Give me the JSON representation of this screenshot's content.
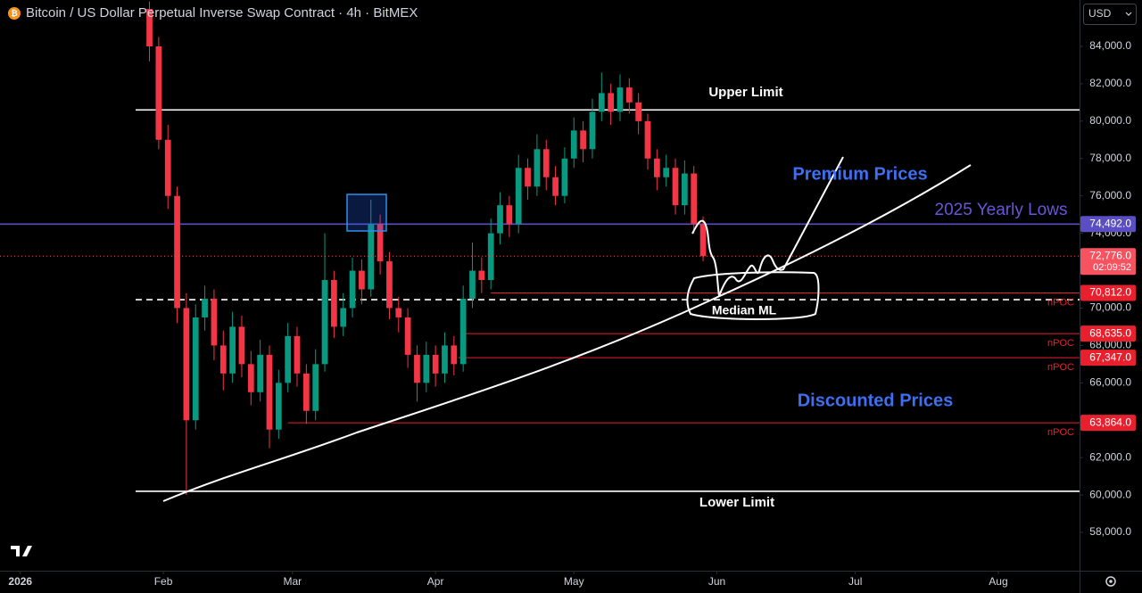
{
  "chart_data": {
    "type": "candlestick",
    "title": "Bitcoin / US Dollar Perpetual Inverse Swap Contract · 4h · BitMEX",
    "currency": "USD",
    "up_color": "#089981",
    "down_color": "#f23645",
    "xlim": [
      -4.4,
      229.6
    ],
    "xticks": [
      {
        "value": 0,
        "label": "2026"
      },
      {
        "value": 31,
        "label": "Feb"
      },
      {
        "value": 59,
        "label": "Mar"
      },
      {
        "value": 90,
        "label": "Apr"
      },
      {
        "value": 120,
        "label": "May"
      },
      {
        "value": 151,
        "label": "Jun"
      },
      {
        "value": 181,
        "label": "Jul"
      },
      {
        "value": 212,
        "label": "Aug"
      }
    ],
    "ylim": [
      55950,
      86480
    ],
    "yticks": [
      {
        "value": 58000,
        "label": "58,000.0"
      },
      {
        "value": 60000,
        "label": "60,000.0"
      },
      {
        "value": 62000,
        "label": "62,000.0"
      },
      {
        "value": 64000,
        "label": "64,000.0"
      },
      {
        "value": 66000,
        "label": "66,000.0"
      },
      {
        "value": 68000,
        "label": "68,000.0"
      },
      {
        "value": 70000,
        "label": "70,000.0"
      },
      {
        "value": 72000,
        "label": "72,000.0"
      },
      {
        "value": 74000,
        "label": "74,000.0"
      },
      {
        "value": 76000,
        "label": "76,000.0"
      },
      {
        "value": 78000,
        "label": "78,000.0"
      },
      {
        "value": 80000,
        "label": "80,000.0"
      },
      {
        "value": 82000,
        "label": "82,000.0"
      },
      {
        "value": 84000,
        "label": "84,000.0"
      }
    ],
    "x": [
      28,
      30,
      32,
      34,
      36,
      38,
      40,
      42,
      44,
      46,
      48,
      50,
      52,
      54,
      56,
      58,
      60,
      62,
      64,
      66,
      68,
      70,
      72,
      74,
      76,
      78,
      80,
      82,
      84,
      86,
      88,
      90,
      92,
      94,
      96,
      98,
      100,
      102,
      104,
      106,
      108,
      110,
      112,
      114,
      116,
      118,
      120,
      122,
      124,
      126,
      128,
      130,
      132,
      134,
      136,
      138,
      140,
      142,
      144,
      146,
      148
    ],
    "open": [
      86000,
      84000,
      79000,
      76000,
      70000,
      64000,
      69500,
      70500,
      68000,
      66500,
      69000,
      67000,
      65500,
      67500,
      63500,
      66000,
      68500,
      66500,
      64500,
      67000,
      71500,
      69000,
      70000,
      72000,
      71000,
      74500,
      72500,
      70000,
      69500,
      67500,
      66000,
      67500,
      66500,
      68000,
      67000,
      70500,
      72000,
      71500,
      74000,
      75500,
      74500,
      77500,
      76500,
      78500,
      77000,
      76000,
      78000,
      79500,
      78500,
      80500,
      81500,
      80500,
      81800,
      81000,
      80000,
      78000,
      77000,
      77500,
      75500,
      77200,
      74500
    ],
    "high": [
      86400,
      84500,
      79800,
      76500,
      70800,
      70200,
      71200,
      71000,
      68800,
      69800,
      69600,
      67700,
      68300,
      68000,
      66700,
      69200,
      69000,
      67000,
      67800,
      74000,
      72000,
      70800,
      72700,
      72600,
      75800,
      75000,
      73000,
      70600,
      70000,
      68000,
      68200,
      68000,
      68700,
      68500,
      71200,
      73500,
      72700,
      74800,
      76200,
      76000,
      78200,
      78000,
      79300,
      79000,
      77600,
      78600,
      80200,
      80000,
      81200,
      82600,
      82000,
      82500,
      82300,
      81500,
      80400,
      78500,
      78200,
      78000,
      77900,
      77600,
      74900
    ],
    "low": [
      83200,
      78500,
      75300,
      69200,
      60000,
      63500,
      68800,
      67200,
      65600,
      66000,
      66300,
      64800,
      65000,
      62500,
      63000,
      65500,
      65800,
      63800,
      64000,
      66600,
      68400,
      68500,
      69500,
      70200,
      70600,
      71800,
      69400,
      68700,
      66800,
      65000,
      65500,
      65800,
      66000,
      66400,
      66600,
      70000,
      70800,
      71000,
      73400,
      73800,
      74000,
      75800,
      76000,
      76300,
      75500,
      75600,
      77500,
      77800,
      78000,
      80000,
      79800,
      80000,
      80400,
      79300,
      77400,
      76300,
      76500,
      75000,
      75000,
      74000,
      72500
    ],
    "close": [
      84000,
      79000,
      76000,
      70000,
      64000,
      69500,
      70500,
      68000,
      66500,
      69000,
      67000,
      65500,
      67500,
      63500,
      66000,
      68500,
      66500,
      64500,
      67000,
      71500,
      69000,
      70000,
      72000,
      71000,
      74500,
      72500,
      70000,
      69500,
      67500,
      66000,
      67500,
      66500,
      68000,
      67000,
      70500,
      72000,
      71500,
      74000,
      75500,
      74500,
      77500,
      76500,
      78500,
      77000,
      76000,
      78000,
      79500,
      78500,
      80500,
      81500,
      80500,
      81800,
      81000,
      80000,
      78000,
      77000,
      77500,
      75500,
      77200,
      74500,
      72776
    ],
    "levels": [
      {
        "label": "Upper Limit",
        "value": 80600,
        "from": 25,
        "color": "#ffffff"
      },
      {
        "label": "Lower Limit",
        "value": 60200,
        "from": 25,
        "color": "#ffffff"
      },
      {
        "label": "2025 Yearly Lows",
        "value": 74492,
        "tag": "74,492.0",
        "color": "#5b4ec2"
      },
      {
        "label": "Median ML",
        "value": 70450,
        "from": 25,
        "dashed": true,
        "color": "#ffffff"
      },
      {
        "marker": "nPOC",
        "value": 70812,
        "tag": "70,812.0",
        "from": 102,
        "color": "#e8202e"
      },
      {
        "marker": "nPOC",
        "value": 68635,
        "tag": "68,635.0",
        "from": 96,
        "color": "#e8202e"
      },
      {
        "marker": "nPOC",
        "value": 67347,
        "tag": "67,347.0",
        "from": 95,
        "color": "#e8202e"
      },
      {
        "marker": "nPOC",
        "value": 63864,
        "tag": "63,864.0",
        "from": 58,
        "color": "#e8202e"
      }
    ],
    "last_price": {
      "value": 72776,
      "tag": "72,776.0",
      "countdown": "02:09:52",
      "color": "#f7525f"
    },
    "annotations": [
      "Premium Prices",
      "Discounted Prices"
    ]
  }
}
